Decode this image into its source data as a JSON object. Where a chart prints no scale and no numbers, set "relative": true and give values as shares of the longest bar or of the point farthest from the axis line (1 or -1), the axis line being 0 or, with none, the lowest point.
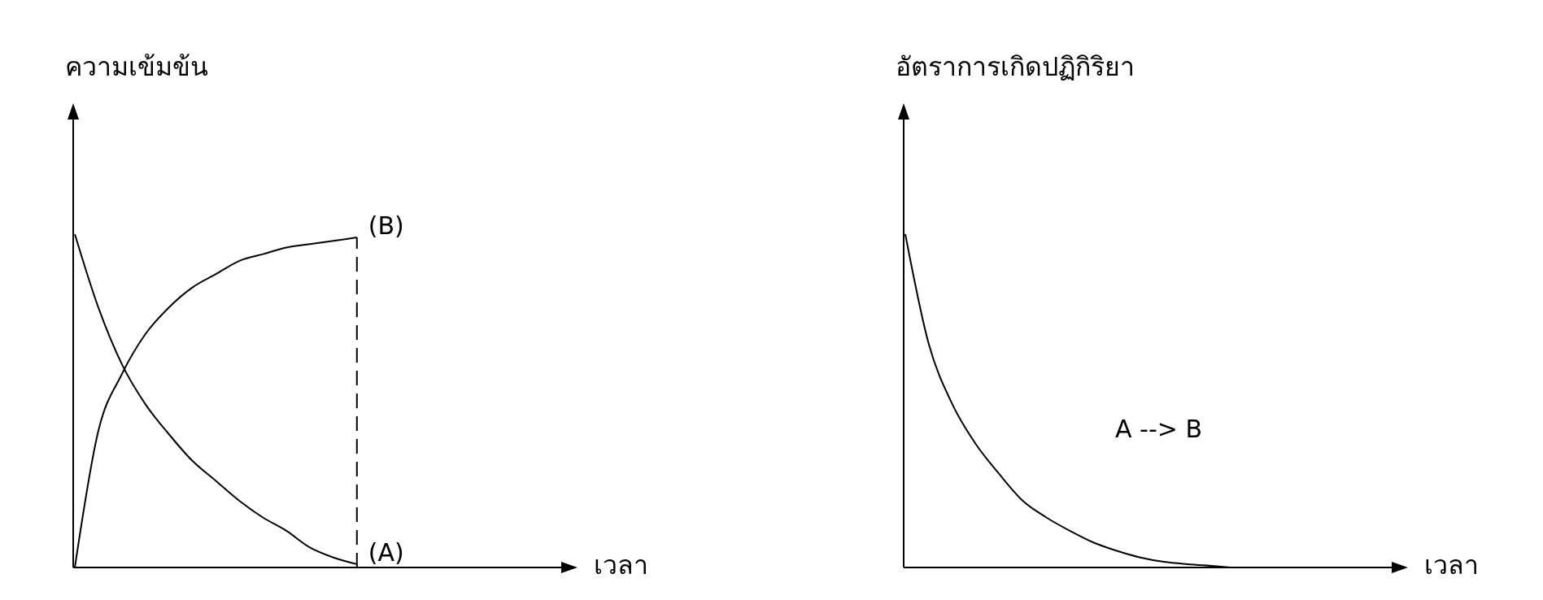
{
  "chart_data": [
    {
      "type": "line",
      "relative": true,
      "ylabel": "ความเข้มข้น",
      "xlabel": "เวลา",
      "legend": false,
      "categories": [
        null,
        null,
        null,
        null,
        null,
        null,
        null,
        null,
        null,
        null,
        null,
        null,
        null,
        null,
        null,
        null,
        null,
        null,
        null,
        null,
        null
      ],
      "series": [
        {
          "name": "(B)",
          "color": "#000000",
          "values": [
            0,
            0.41,
            0.58,
            0.7,
            0.78,
            0.84,
            0.88,
            0.92,
            0.94,
            0.96,
            0.97,
            0.98,
            0.99,
            null,
            null,
            null,
            null,
            null,
            null,
            null,
            null
          ]
        },
        {
          "name": "(A)",
          "color": "#000000",
          "values": [
            1,
            0.78,
            0.61,
            0.49,
            0.4,
            0.32,
            0.26,
            0.2,
            0.15,
            0.11,
            0.06,
            0.03,
            0.01,
            null,
            null,
            null,
            null,
            null,
            null,
            null,
            null
          ]
        }
      ],
      "line_style": "solid"
    },
    {
      "type": "line",
      "relative": true,
      "ylabel": "อัตราการเกิดปฏิกิริยา",
      "xlabel": "เวลา",
      "legend": false,
      "annotations": [
        "A --> B"
      ],
      "categories": [
        null,
        null,
        null,
        null,
        null,
        null,
        null,
        null,
        null,
        null,
        null,
        null,
        null,
        null,
        null,
        null,
        null,
        null,
        null,
        null,
        null
      ],
      "series": [
        {
          "color": "#000000",
          "values": [
            1,
            0.67,
            0.49,
            0.37,
            0.28,
            0.2,
            0.15,
            0.11,
            0.075,
            0.05,
            0.03,
            0.017,
            0.01,
            0.005,
            0,
            0,
            null,
            null,
            null,
            null,
            null
          ]
        }
      ]
    }
  ]
}
